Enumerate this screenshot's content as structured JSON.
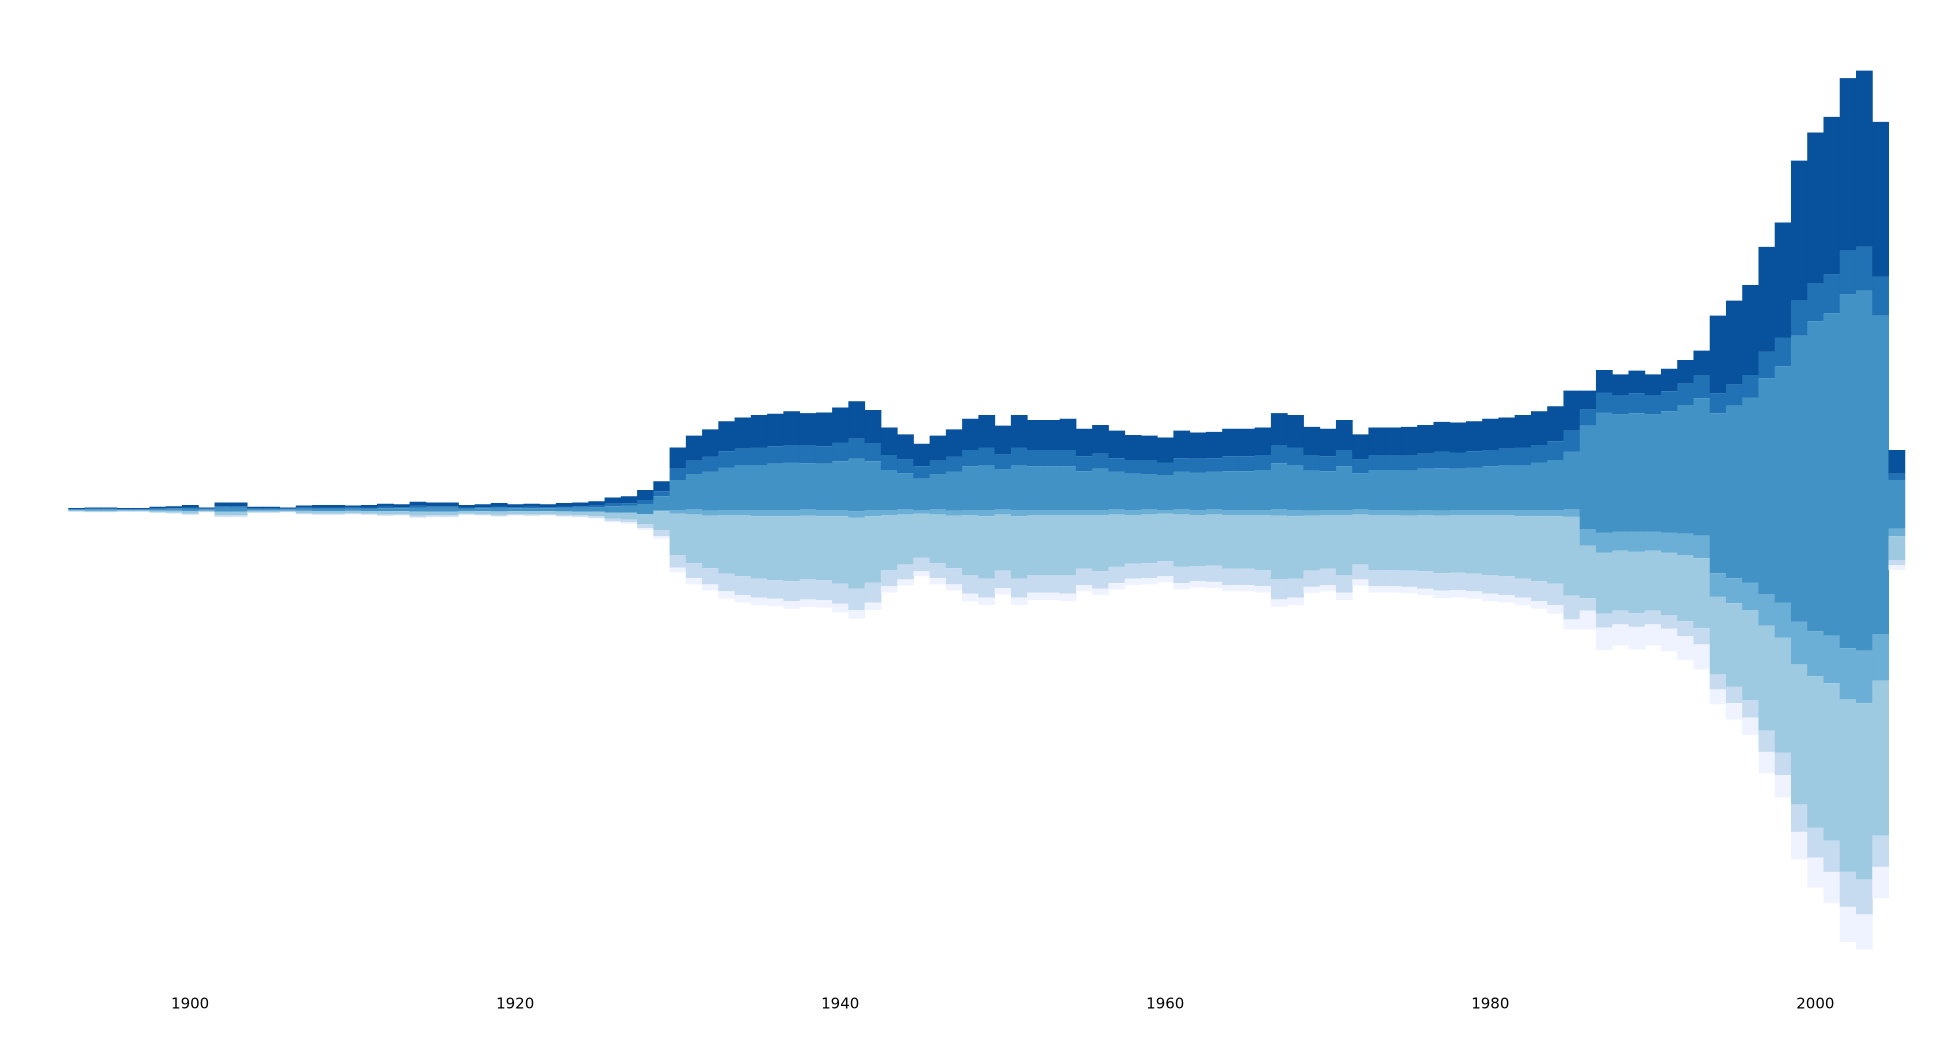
{
  "chart_data": {
    "type": "streamgraph",
    "x": [
      1893,
      1894,
      1895,
      1896,
      1897,
      1898,
      1899,
      1900,
      1901,
      1902,
      1903,
      1904,
      1905,
      1906,
      1907,
      1908,
      1909,
      1910,
      1911,
      1912,
      1913,
      1914,
      1915,
      1916,
      1917,
      1918,
      1919,
      1920,
      1921,
      1922,
      1923,
      1924,
      1925,
      1926,
      1927,
      1928,
      1929,
      1930,
      1931,
      1932,
      1933,
      1934,
      1935,
      1936,
      1937,
      1938,
      1939,
      1940,
      1941,
      1942,
      1943,
      1944,
      1945,
      1946,
      1947,
      1948,
      1949,
      1950,
      1951,
      1952,
      1953,
      1954,
      1955,
      1956,
      1957,
      1958,
      1959,
      1960,
      1961,
      1962,
      1963,
      1964,
      1965,
      1966,
      1967,
      1968,
      1969,
      1970,
      1971,
      1972,
      1973,
      1974,
      1975,
      1976,
      1977,
      1978,
      1979,
      1980,
      1981,
      1982,
      1983,
      1984,
      1985,
      1986,
      1987,
      1988,
      1989,
      1990,
      1991,
      1992,
      1993,
      1994,
      1995,
      1996,
      1997,
      1998,
      1999,
      2000,
      2001,
      2002,
      2003,
      2004,
      2005
    ],
    "xlim": [
      1888.3,
      2008.9
    ],
    "xticks": [
      1900,
      1920,
      1940,
      1960,
      1980,
      2000
    ],
    "ylim": [
      -408,
      408
    ],
    "series": [
      {
        "color": "#08519c",
        "values": [
          0.8,
          1,
          1,
          0.8,
          0.8,
          1.3,
          1.5,
          2,
          1,
          3,
          3,
          1.3,
          1.3,
          1,
          1.8,
          2,
          2,
          1.8,
          2,
          2.5,
          2.3,
          3.3,
          3,
          3,
          2,
          2.3,
          2.8,
          2.3,
          2.5,
          2.3,
          2.8,
          3,
          3.5,
          5,
          5.5,
          8,
          8,
          17,
          20,
          22,
          24,
          25,
          26,
          26,
          27,
          26,
          27,
          28,
          30,
          27,
          22,
          20,
          18,
          20,
          22,
          25,
          26,
          23,
          26,
          24,
          24,
          25,
          22,
          23,
          22,
          20,
          20,
          20,
          22,
          21,
          21,
          22,
          22,
          22,
          26,
          26,
          23,
          22,
          24,
          20,
          22,
          22,
          23,
          23,
          24,
          24,
          24,
          25,
          25,
          26,
          27,
          28,
          32,
          15,
          18,
          17,
          18,
          17,
          18,
          19,
          20,
          62,
          67,
          72,
          84,
          92,
          112,
          121,
          126,
          138,
          141,
          124,
          19
        ]
      },
      {
        "color": "#2171b5",
        "values": [
          0.3,
          0.4,
          0.4,
          0.3,
          0.3,
          0.5,
          0.6,
          0.8,
          0.4,
          1.2,
          1.2,
          0.5,
          0.5,
          0.4,
          0.7,
          0.8,
          0.8,
          0.7,
          0.8,
          1,
          0.9,
          1.3,
          1.2,
          1.2,
          0.8,
          0.9,
          1.1,
          0.9,
          1,
          0.9,
          1.1,
          1.2,
          1.4,
          2,
          2.2,
          3.2,
          4,
          9,
          11,
          12,
          13,
          13,
          14,
          14,
          14,
          14,
          14,
          15,
          16,
          14,
          12,
          11,
          10,
          11,
          12,
          13,
          14,
          12,
          14,
          13,
          13,
          13,
          12,
          12,
          11,
          11,
          11,
          10,
          11,
          11,
          11,
          12,
          12,
          12,
          14,
          14,
          12,
          12,
          13,
          11,
          12,
          12,
          12,
          12,
          13,
          13,
          13,
          13,
          13,
          14,
          14,
          15,
          17,
          13,
          16,
          15,
          16,
          15,
          16,
          17,
          18,
          16,
          17,
          18,
          21,
          23,
          28,
          30,
          31,
          35,
          35,
          31,
          5
        ]
      },
      {
        "color": "#4292c6",
        "values": [
          0.8,
          1,
          1,
          0.8,
          0.8,
          1.3,
          1.5,
          2,
          1,
          3,
          3,
          1.3,
          1.3,
          1,
          1.8,
          2,
          2,
          1.8,
          2,
          2.5,
          2.3,
          3.3,
          3,
          3,
          2,
          2.3,
          2.8,
          2.3,
          2.5,
          2.3,
          2.8,
          3,
          3.5,
          5,
          5.5,
          8,
          11,
          24,
          28,
          31,
          34,
          36,
          36,
          37,
          38,
          37,
          37,
          39,
          42,
          39,
          32,
          29,
          25,
          28,
          31,
          35,
          36,
          32,
          36,
          35,
          35,
          35,
          31,
          33,
          30,
          29,
          28,
          28,
          30,
          30,
          30,
          31,
          31,
          32,
          37,
          36,
          32,
          31,
          35,
          29,
          32,
          32,
          32,
          33,
          34,
          33,
          34,
          35,
          36,
          36,
          38,
          40,
          46,
          83,
          96,
          94,
          95,
          94,
          97,
          103,
          110,
          128,
          138,
          148,
          173,
          189,
          229,
          248,
          258,
          283,
          288,
          255,
          39
        ]
      },
      {
        "color": "#6baed6",
        "values": [
          0,
          0,
          0,
          0,
          0,
          0,
          0,
          0,
          0,
          0,
          0,
          0,
          0,
          0,
          0,
          0,
          0,
          0,
          0,
          0,
          0,
          0,
          0,
          0,
          0,
          0,
          0,
          0,
          0,
          0,
          0,
          0,
          0,
          0,
          0,
          0,
          1,
          3,
          4,
          4,
          4,
          4,
          5,
          5,
          5,
          5,
          5,
          5,
          5,
          5,
          4,
          4,
          3,
          4,
          4,
          4,
          5,
          4,
          5,
          4,
          4,
          4,
          4,
          4,
          4,
          4,
          4,
          3,
          4,
          4,
          4,
          4,
          4,
          4,
          5,
          5,
          4,
          4,
          4,
          4,
          4,
          4,
          4,
          4,
          4,
          4,
          4,
          4,
          4,
          5,
          5,
          5,
          6,
          13,
          16,
          15,
          16,
          15,
          16,
          17,
          18,
          19,
          20,
          22,
          25,
          28,
          34,
          36,
          38,
          41,
          42,
          37,
          6
        ]
      },
      {
        "color": "#9ecae1",
        "values": [
          0.8,
          1,
          1,
          0.8,
          0.8,
          1.3,
          1.5,
          2,
          1,
          3,
          3,
          1.3,
          1.3,
          1,
          1.8,
          2,
          2,
          1.8,
          2,
          2.5,
          2.3,
          3.3,
          3,
          3,
          2,
          2.3,
          2.8,
          2.3,
          2.5,
          2.3,
          2.8,
          3,
          3.5,
          5,
          5.5,
          8,
          15,
          33,
          39,
          42,
          47,
          49,
          50,
          51,
          52,
          51,
          51,
          54,
          57,
          53,
          44,
          40,
          35,
          39,
          42,
          48,
          50,
          45,
          50,
          48,
          48,
          48,
          43,
          45,
          42,
          39,
          39,
          38,
          42,
          41,
          41,
          43,
          43,
          44,
          51,
          50,
          44,
          43,
          48,
          40,
          44,
          44,
          44,
          45,
          46,
          46,
          47,
          48,
          49,
          50,
          52,
          54,
          63,
          42,
          49,
          48,
          49,
          48,
          50,
          53,
          56,
          62,
          67,
          72,
          84,
          92,
          112,
          121,
          126,
          138,
          141,
          124,
          19
        ]
      },
      {
        "color": "#c6dbef",
        "values": [
          0.3,
          0.4,
          0.4,
          0.3,
          0.3,
          0.5,
          0.6,
          0.8,
          0.4,
          1.2,
          1.2,
          0.5,
          0.5,
          0.4,
          0.7,
          0.8,
          0.8,
          0.7,
          0.8,
          1,
          0.9,
          1.3,
          1.2,
          1.2,
          0.8,
          0.9,
          1.1,
          0.9,
          1,
          0.9,
          1.1,
          1.2,
          1.4,
          2,
          2.2,
          3.2,
          5,
          10,
          12,
          13,
          14,
          15,
          15,
          15,
          16,
          16,
          16,
          16,
          17,
          16,
          13,
          12,
          11,
          12,
          13,
          15,
          15,
          14,
          15,
          14,
          14,
          15,
          13,
          14,
          13,
          12,
          12,
          12,
          13,
          12,
          13,
          13,
          13,
          13,
          16,
          15,
          13,
          13,
          14,
          12,
          13,
          13,
          13,
          14,
          14,
          14,
          14,
          15,
          15,
          15,
          16,
          17,
          19,
          10,
          11,
          11,
          11,
          11,
          11,
          12,
          13,
          12,
          13,
          14,
          17,
          18,
          22,
          24,
          25,
          28,
          28,
          25,
          4
        ]
      },
      {
        "color": "#eff3ff",
        "values": [
          0.2,
          0.2,
          0.2,
          0.2,
          0.2,
          0.3,
          0.3,
          0.4,
          0.2,
          0.6,
          0.6,
          0.3,
          0.3,
          0.2,
          0.4,
          0.4,
          0.4,
          0.4,
          0.4,
          0.5,
          0.5,
          0.7,
          0.6,
          0.6,
          0.4,
          0.5,
          0.6,
          0.5,
          0.5,
          0.5,
          0.6,
          0.6,
          0.7,
          1,
          1.1,
          1.6,
          2,
          4,
          5,
          5,
          6,
          6,
          6,
          6,
          6,
          6,
          6,
          7,
          7,
          6,
          5,
          5,
          4,
          5,
          5,
          6,
          6,
          5,
          6,
          6,
          6,
          6,
          5,
          5,
          5,
          5,
          5,
          5,
          5,
          5,
          5,
          5,
          5,
          5,
          6,
          6,
          5,
          5,
          6,
          5,
          5,
          5,
          5,
          5,
          6,
          6,
          6,
          6,
          6,
          6,
          6,
          7,
          8,
          15,
          18,
          17,
          18,
          17,
          18,
          19,
          20,
          12,
          13,
          14,
          17,
          18,
          22,
          24,
          25,
          28,
          28,
          25,
          4
        ]
      }
    ]
  }
}
